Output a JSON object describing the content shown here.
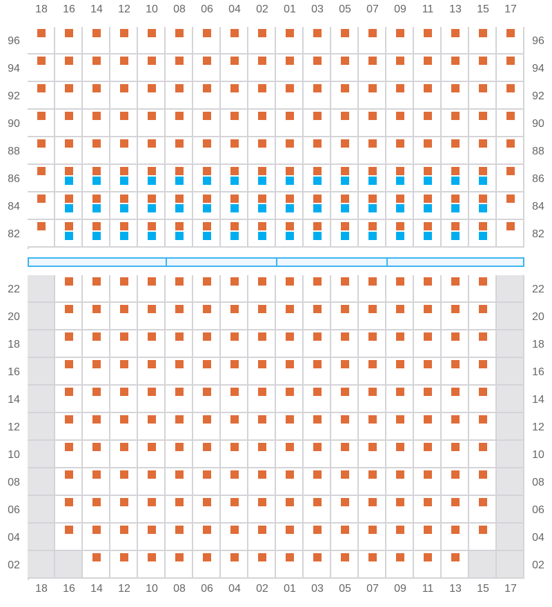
{
  "columns": [
    "18",
    "16",
    "14",
    "12",
    "10",
    "08",
    "06",
    "04",
    "02",
    "01",
    "03",
    "05",
    "07",
    "09",
    "11",
    "13",
    "15",
    "17"
  ],
  "legend_codes": {
    "o": "available",
    "b": "available+selected",
    "g": "unavailable",
    "e": "empty"
  },
  "colors": {
    "available": "#e06c38",
    "selected": "#00aeef",
    "unavailable": "#e4e4e6",
    "grid": "#d4d4d8",
    "divider": "#3bb4f0"
  },
  "upper_section": {
    "rows": [
      {
        "label": "96",
        "seats": "oooooooooooooooooo"
      },
      {
        "label": "94",
        "seats": "oooooooooooooooooo"
      },
      {
        "label": "92",
        "seats": "oooooooooooooooooo"
      },
      {
        "label": "90",
        "seats": "oooooooooooooooooo"
      },
      {
        "label": "88",
        "seats": "oooooooooooooooooo"
      },
      {
        "label": "86",
        "seats": "obbbbbbbbbbbbbbbbo"
      },
      {
        "label": "84",
        "seats": "obbbbbbbbbbbbbbbbo"
      },
      {
        "label": "82",
        "seats": "obbbbbbbbbbbbbbbbo"
      }
    ]
  },
  "lower_section": {
    "rows": [
      {
        "label": "22",
        "seats": "goooooooooooooooog"
      },
      {
        "label": "20",
        "seats": "goooooooooooooooog"
      },
      {
        "label": "18",
        "seats": "goooooooooooooooog"
      },
      {
        "label": "16",
        "seats": "goooooooooooooooog"
      },
      {
        "label": "14",
        "seats": "goooooooooooooooog"
      },
      {
        "label": "12",
        "seats": "goooooooooooooooog"
      },
      {
        "label": "10",
        "seats": "goooooooooooooooog"
      },
      {
        "label": "08",
        "seats": "goooooooooooooooog"
      },
      {
        "label": "06",
        "seats": "goooooooooooooooog"
      },
      {
        "label": "04",
        "seats": "goooooooooooooooog"
      },
      {
        "label": "02",
        "seats": "ggoooooooooooooogg"
      }
    ]
  }
}
